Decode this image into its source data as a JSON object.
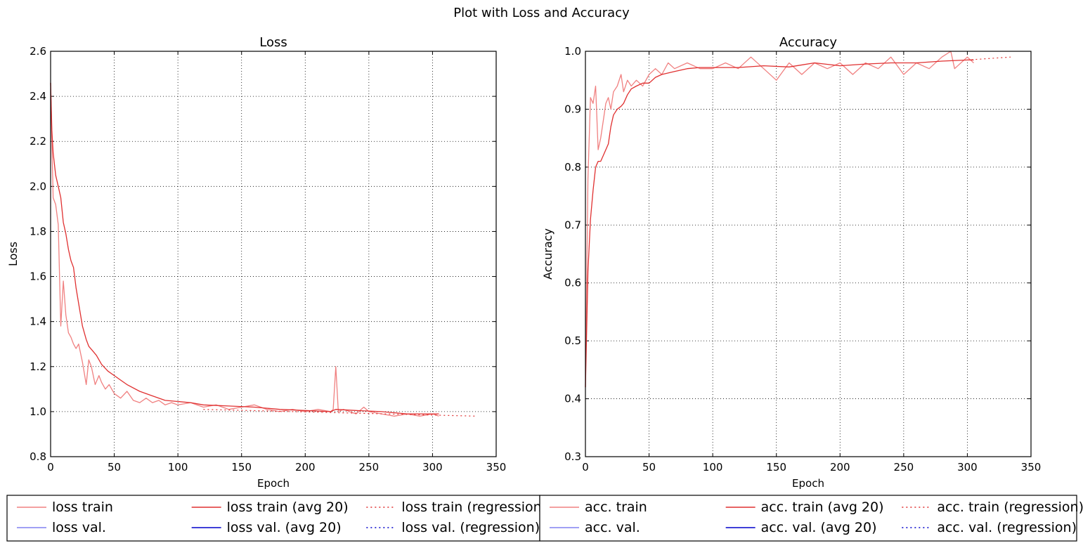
{
  "figure": {
    "title": "Plot with Loss and Accuracy"
  },
  "colors": {
    "train_light": "#f08080",
    "train_dark": "#e03030",
    "val_light": "#8080f0",
    "val_dark": "#0000cc"
  },
  "chart_data": [
    {
      "type": "line",
      "title": "Loss",
      "xlabel": "Epoch",
      "ylabel": "Loss",
      "xlim": [
        0,
        350
      ],
      "ylim": [
        0.8,
        2.6
      ],
      "xticks": [
        "0",
        "50",
        "100",
        "150",
        "200",
        "250",
        "300",
        "350"
      ],
      "yticks": [
        "0.8",
        "1.0",
        "1.2",
        "1.4",
        "1.6",
        "1.8",
        "2.0",
        "2.2",
        "2.4",
        "2.6"
      ],
      "grid": true,
      "legend_position": "below",
      "legend": [
        "loss train",
        "loss train (avg 20)",
        "loss train (regression)",
        "loss val.",
        "loss val. (avg 20)",
        "loss val. (regression)"
      ],
      "series": [
        {
          "name": "loss train",
          "style": "light",
          "x": [
            0,
            2,
            4,
            6,
            8,
            10,
            12,
            14,
            16,
            18,
            20,
            22,
            25,
            28,
            30,
            32,
            35,
            38,
            40,
            43,
            46,
            50,
            55,
            60,
            65,
            70,
            75,
            80,
            85,
            90,
            95,
            100,
            110,
            120,
            130,
            140,
            150,
            160,
            170,
            180,
            190,
            200,
            210,
            220,
            222,
            224,
            226,
            230,
            240,
            246,
            250,
            260,
            270,
            280,
            290,
            300,
            305
          ],
          "y": [
            2.46,
            1.95,
            1.92,
            1.83,
            1.38,
            1.58,
            1.43,
            1.35,
            1.33,
            1.3,
            1.28,
            1.3,
            1.22,
            1.12,
            1.23,
            1.2,
            1.12,
            1.16,
            1.13,
            1.1,
            1.12,
            1.08,
            1.06,
            1.09,
            1.05,
            1.04,
            1.06,
            1.04,
            1.05,
            1.03,
            1.04,
            1.03,
            1.04,
            1.02,
            1.03,
            1.01,
            1.02,
            1.03,
            1.01,
            1.0,
            1.01,
            1.0,
            1.01,
            1.0,
            1.01,
            1.2,
            1.0,
            1.01,
            0.99,
            1.02,
            1.0,
            0.99,
            0.98,
            0.99,
            0.98,
            0.99,
            0.98
          ]
        },
        {
          "name": "loss train (avg 20)",
          "style": "dark",
          "x": [
            0,
            1,
            2,
            4,
            6,
            8,
            10,
            12,
            14,
            16,
            18,
            20,
            22,
            25,
            28,
            30,
            33,
            36,
            40,
            45,
            50,
            55,
            60,
            70,
            80,
            90,
            100,
            110,
            120,
            140,
            160,
            180,
            200,
            220,
            224,
            240,
            260,
            280,
            300,
            305
          ],
          "y": [
            2.46,
            2.25,
            2.15,
            2.05,
            2.0,
            1.95,
            1.84,
            1.79,
            1.72,
            1.67,
            1.64,
            1.55,
            1.48,
            1.38,
            1.32,
            1.29,
            1.27,
            1.25,
            1.21,
            1.18,
            1.16,
            1.14,
            1.12,
            1.09,
            1.07,
            1.05,
            1.045,
            1.04,
            1.03,
            1.025,
            1.02,
            1.01,
            1.005,
            1.0,
            1.01,
            1.005,
            1.0,
            0.99,
            0.99,
            0.99
          ]
        },
        {
          "name": "loss train (regression)",
          "style": "dotted",
          "x": [
            120,
            334
          ],
          "y": [
            1.01,
            0.98
          ]
        }
      ]
    },
    {
      "type": "line",
      "title": "Accuracy",
      "xlabel": "Epoch",
      "ylabel": "Accuracy",
      "xlim": [
        0,
        350
      ],
      "ylim": [
        0.3,
        1.0
      ],
      "xticks": [
        "0",
        "50",
        "100",
        "150",
        "200",
        "250",
        "300",
        "350"
      ],
      "yticks": [
        "0.3",
        "0.4",
        "0.5",
        "0.6",
        "0.7",
        "0.8",
        "0.9",
        "1.0"
      ],
      "grid": true,
      "legend_position": "below",
      "legend": [
        "acc. train",
        "acc. train (avg 20)",
        "acc. train (regression)",
        "acc. val.",
        "acc. val. (avg 20)",
        "acc. val. (regression)"
      ],
      "series": [
        {
          "name": "acc. train",
          "style": "light",
          "x": [
            0,
            2,
            4,
            6,
            8,
            10,
            12,
            14,
            16,
            18,
            20,
            22,
            25,
            28,
            30,
            33,
            36,
            40,
            45,
            50,
            55,
            60,
            65,
            70,
            80,
            90,
            100,
            110,
            120,
            130,
            140,
            150,
            160,
            170,
            180,
            190,
            200,
            210,
            220,
            230,
            240,
            250,
            260,
            270,
            280,
            287,
            290,
            300,
            305
          ],
          "y": [
            0.42,
            0.78,
            0.92,
            0.91,
            0.94,
            0.83,
            0.85,
            0.88,
            0.91,
            0.92,
            0.9,
            0.93,
            0.94,
            0.96,
            0.93,
            0.95,
            0.94,
            0.95,
            0.94,
            0.96,
            0.97,
            0.96,
            0.98,
            0.97,
            0.98,
            0.97,
            0.97,
            0.98,
            0.97,
            0.99,
            0.97,
            0.95,
            0.98,
            0.96,
            0.98,
            0.97,
            0.98,
            0.96,
            0.98,
            0.97,
            0.99,
            0.96,
            0.98,
            0.97,
            0.99,
            1.0,
            0.97,
            0.99,
            0.98
          ]
        },
        {
          "name": "acc. train (avg 20)",
          "style": "dark",
          "x": [
            0,
            2,
            4,
            6,
            8,
            10,
            12,
            14,
            16,
            18,
            20,
            22,
            25,
            28,
            30,
            33,
            36,
            40,
            45,
            50,
            55,
            60,
            70,
            80,
            90,
            100,
            120,
            140,
            160,
            180,
            200,
            220,
            240,
            260,
            280,
            300,
            305
          ],
          "y": [
            0.42,
            0.62,
            0.71,
            0.76,
            0.8,
            0.81,
            0.81,
            0.82,
            0.83,
            0.84,
            0.87,
            0.89,
            0.9,
            0.905,
            0.91,
            0.925,
            0.935,
            0.94,
            0.945,
            0.945,
            0.955,
            0.96,
            0.965,
            0.97,
            0.972,
            0.972,
            0.972,
            0.975,
            0.973,
            0.98,
            0.975,
            0.978,
            0.98,
            0.98,
            0.983,
            0.985,
            0.985
          ]
        },
        {
          "name": "acc. train (regression)",
          "style": "dotted",
          "x": [
            300,
            334
          ],
          "y": [
            0.985,
            0.99
          ]
        }
      ]
    }
  ]
}
